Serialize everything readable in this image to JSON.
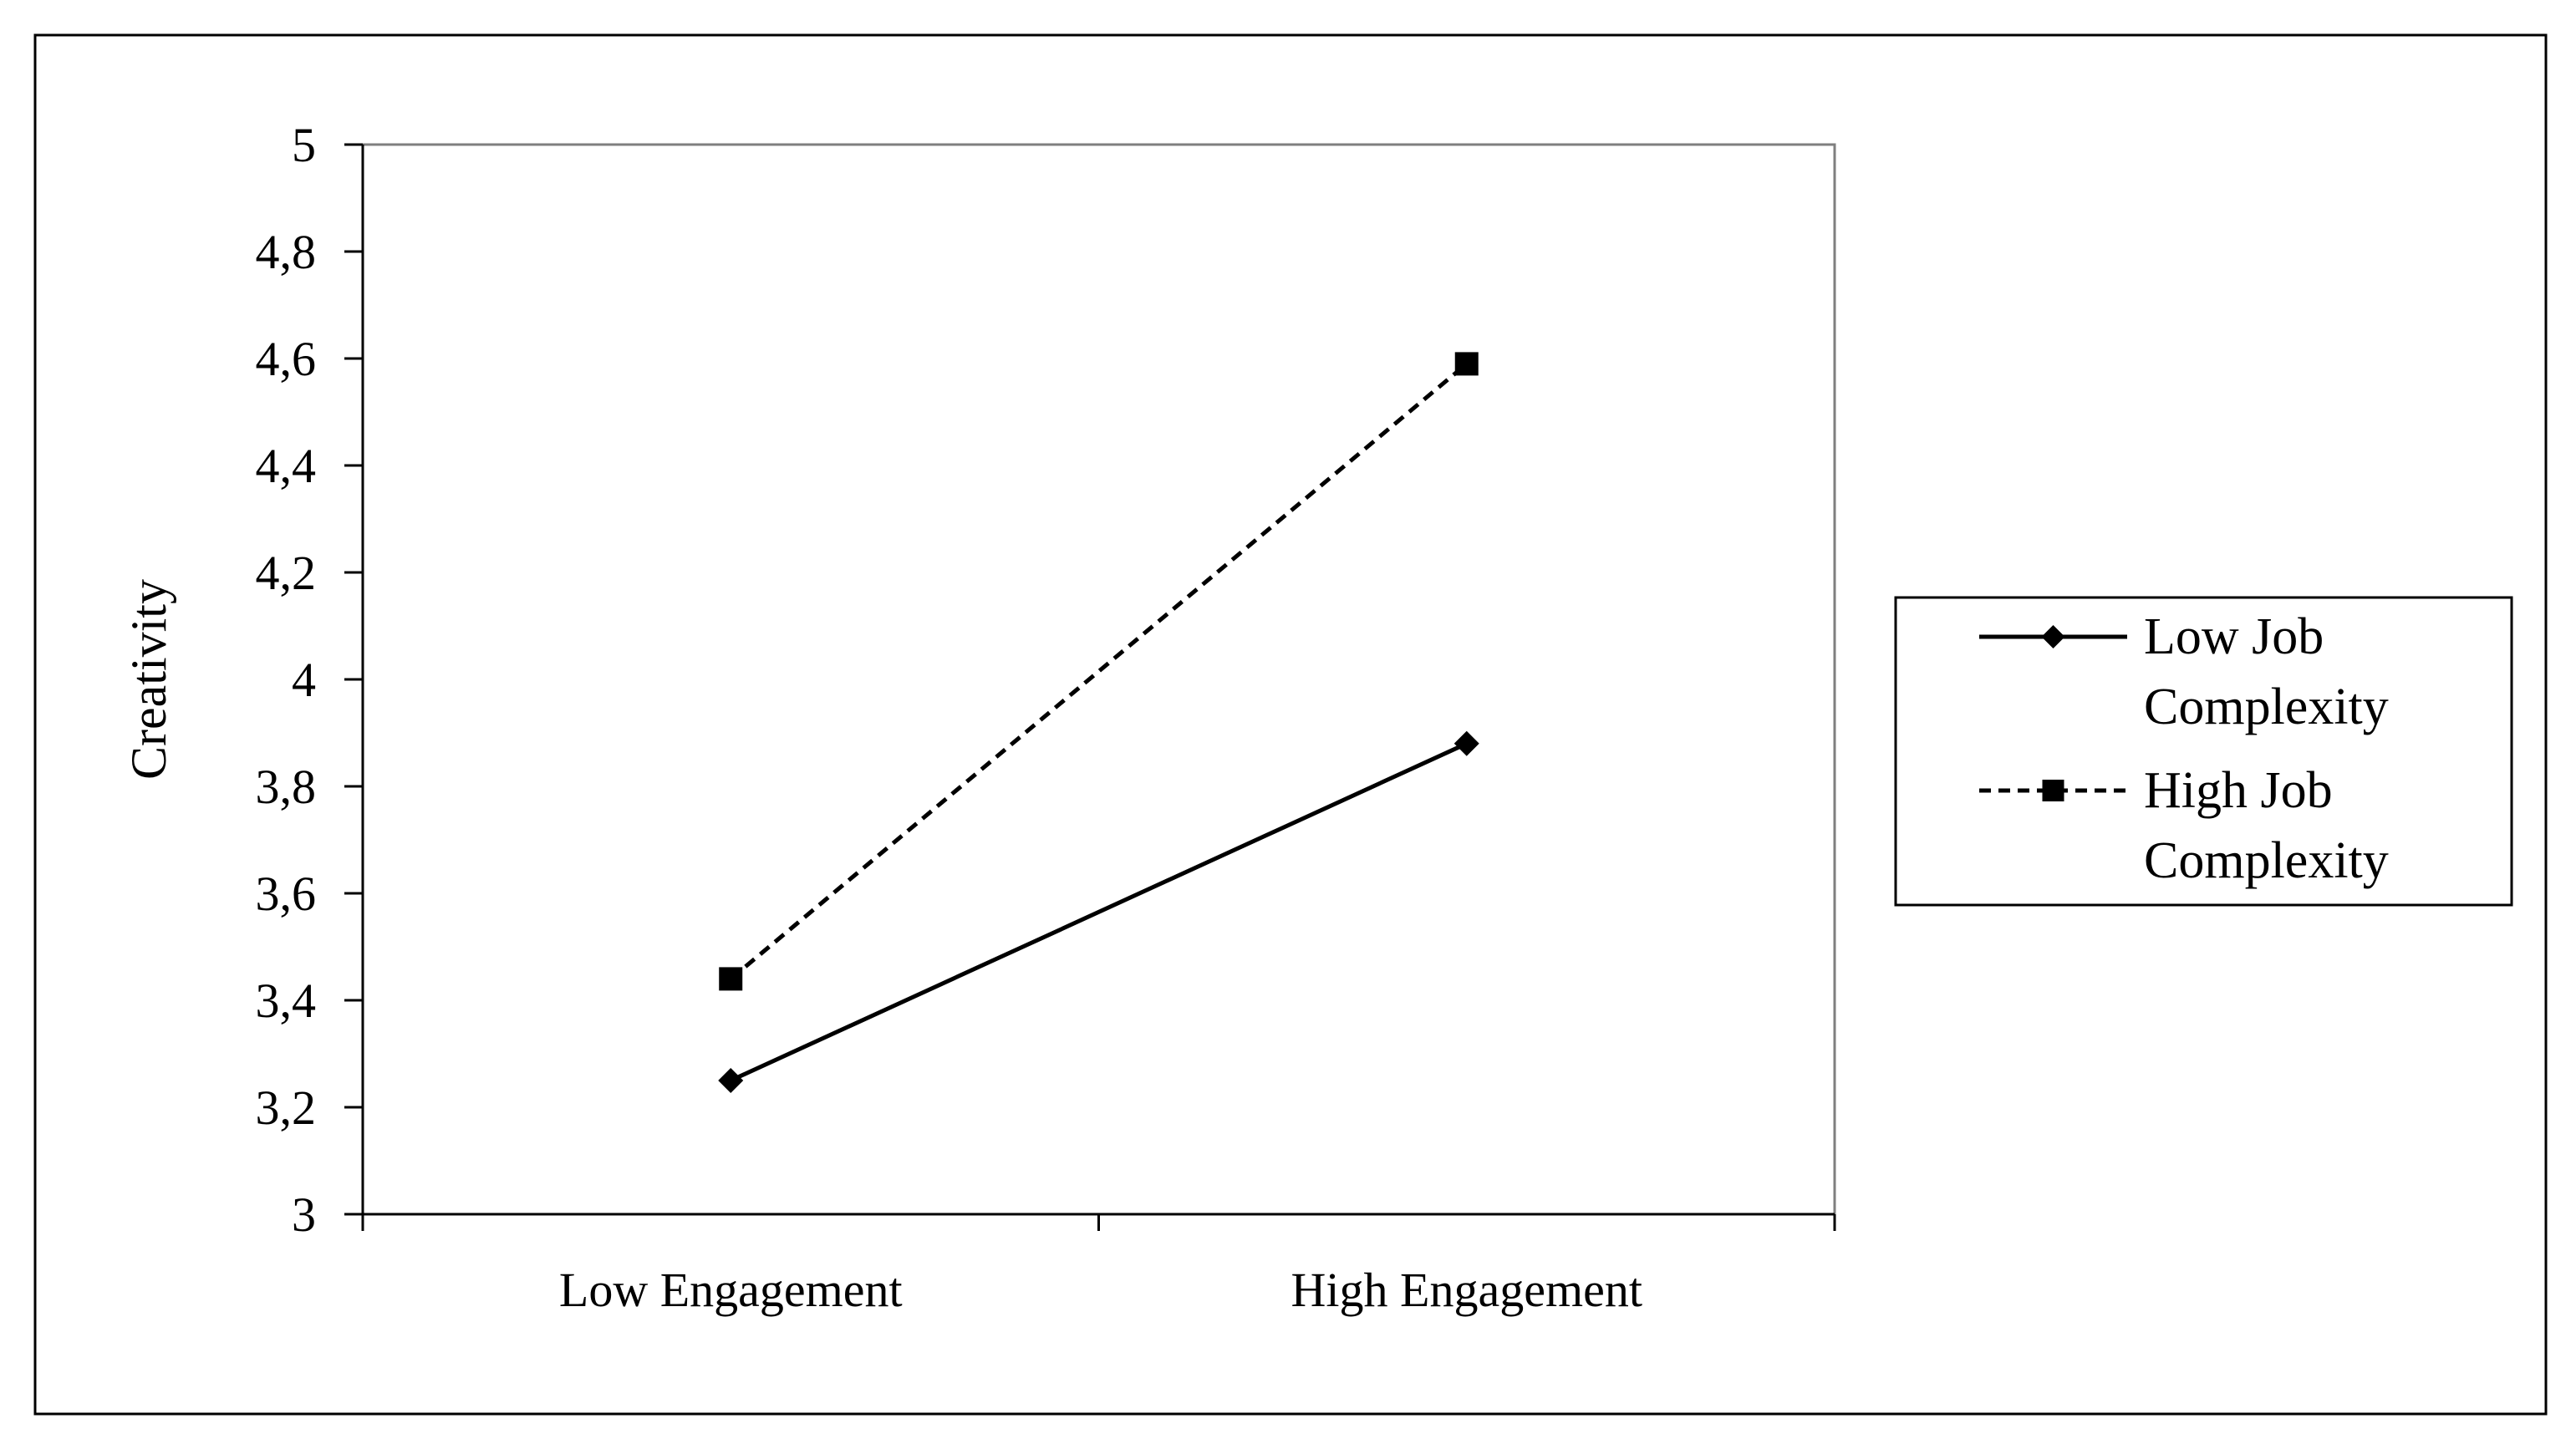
{
  "chart_data": {
    "type": "line",
    "title": "",
    "xlabel": "",
    "ylabel": "Creativity",
    "categories": [
      "Low Engagement",
      "High Engagement"
    ],
    "ylim": [
      3,
      5
    ],
    "yticks": [
      "3",
      "3,2",
      "3,4",
      "3,6",
      "3,8",
      "4",
      "4,2",
      "4,4",
      "4,6",
      "4,8",
      "5"
    ],
    "ytick_values": [
      3,
      3.2,
      3.4,
      3.6,
      3.8,
      4,
      4.2,
      4.4,
      4.6,
      4.8,
      5
    ],
    "grid": false,
    "legend_position": "right",
    "series": [
      {
        "name_lines": [
          "Low Job",
          "Complexity"
        ],
        "values": [
          3.25,
          3.88
        ],
        "line_style": "solid",
        "marker": "diamond",
        "color": "#000000"
      },
      {
        "name_lines": [
          "High Job",
          "Complexity"
        ],
        "values": [
          3.44,
          4.59
        ],
        "line_style": "dashed",
        "marker": "square",
        "color": "#000000"
      }
    ]
  }
}
